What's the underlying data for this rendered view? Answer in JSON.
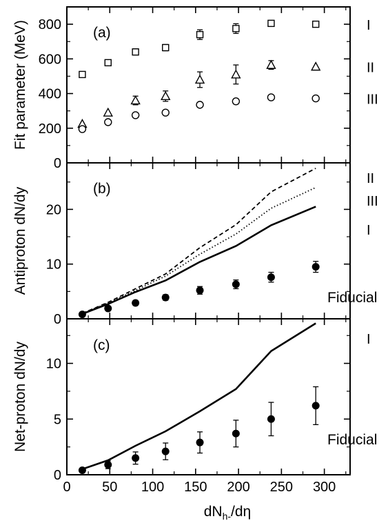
{
  "chart_data": [
    {
      "panel": "(a)",
      "type": "scatter",
      "ylabel": "Fit parameter (MeV)",
      "ylim": [
        0,
        900
      ],
      "yticks": [
        0,
        200,
        400,
        600,
        800
      ],
      "series": [
        {
          "name": "I",
          "marker": "square",
          "x": [
            18,
            48,
            80,
            115,
            155,
            197,
            238,
            290
          ],
          "y": [
            510,
            578,
            640,
            665,
            740,
            775,
            805,
            800
          ],
          "err": [
            0,
            10,
            18,
            18,
            28,
            28,
            12,
            0
          ]
        },
        {
          "name": "II",
          "marker": "triangle",
          "x": [
            18,
            48,
            80,
            115,
            155,
            197,
            238,
            290
          ],
          "y": [
            225,
            290,
            360,
            385,
            480,
            510,
            565,
            555
          ],
          "err": [
            0,
            0,
            25,
            30,
            45,
            55,
            25,
            0
          ]
        },
        {
          "name": "III",
          "marker": "circle",
          "x": [
            18,
            48,
            80,
            115,
            155,
            197,
            238,
            290
          ],
          "y": [
            195,
            235,
            275,
            290,
            335,
            355,
            378,
            372
          ],
          "err": [
            0,
            0,
            0,
            0,
            10,
            15,
            0,
            0
          ]
        }
      ]
    },
    {
      "panel": "(b)",
      "type": "line",
      "ylabel": "Antiproton dN/dy",
      "ylim": [
        0,
        28.5
      ],
      "yticks": [
        0,
        10,
        20
      ],
      "series": [
        {
          "name": "II",
          "style": "dashed",
          "x": [
            18,
            48,
            80,
            115,
            155,
            197,
            238,
            290
          ],
          "y": [
            1.0,
            3.0,
            5.5,
            8.2,
            13.0,
            17.2,
            23.2,
            27.5
          ]
        },
        {
          "name": "III",
          "style": "dotted",
          "x": [
            18,
            48,
            80,
            115,
            155,
            197,
            238,
            290
          ],
          "y": [
            1.0,
            2.9,
            5.2,
            7.8,
            11.8,
            15.5,
            20.2,
            24.0
          ]
        },
        {
          "name": "I",
          "style": "solid",
          "x": [
            18,
            48,
            80,
            115,
            155,
            197,
            238,
            290
          ],
          "y": [
            0.9,
            2.7,
            4.9,
            7.0,
            10.4,
            13.3,
            17.1,
            20.5
          ]
        },
        {
          "name": "Fiducial",
          "style": "points",
          "x": [
            18,
            48,
            80,
            115,
            155,
            197,
            238,
            290
          ],
          "y": [
            0.8,
            1.9,
            2.9,
            3.9,
            5.2,
            6.3,
            7.6,
            9.5
          ],
          "err": [
            0.2,
            0.3,
            0.4,
            0.5,
            0.7,
            0.8,
            0.9,
            1.0
          ]
        }
      ]
    },
    {
      "panel": "(c)",
      "type": "line",
      "ylabel": "Net-proton dN/dy",
      "xlabel": "dN",
      "xlabel_sub": "h-",
      "xlabel_tail": "/dη",
      "xlim": [
        0,
        330
      ],
      "xticks": [
        0,
        50,
        100,
        150,
        200,
        250,
        300
      ],
      "ylim": [
        0,
        14
      ],
      "yticks": [
        0,
        5,
        10
      ],
      "series": [
        {
          "name": "I",
          "style": "solid",
          "x": [
            18,
            48,
            80,
            115,
            155,
            197,
            238,
            290
          ],
          "y": [
            0.5,
            1.3,
            2.6,
            3.9,
            5.7,
            7.7,
            11.1,
            13.6
          ]
        },
        {
          "name": "Fiducial",
          "style": "points",
          "x": [
            18,
            48,
            80,
            115,
            155,
            197,
            238,
            290
          ],
          "y": [
            0.4,
            0.9,
            1.5,
            2.1,
            2.9,
            3.7,
            5.0,
            6.2
          ],
          "err": [
            0.1,
            0.35,
            0.55,
            0.75,
            0.95,
            1.2,
            1.5,
            1.7
          ]
        }
      ]
    }
  ],
  "labels": {
    "panel_a": "(a)",
    "panel_b": "(b)",
    "panel_c": "(c)",
    "fiducial": "Fiducial"
  }
}
